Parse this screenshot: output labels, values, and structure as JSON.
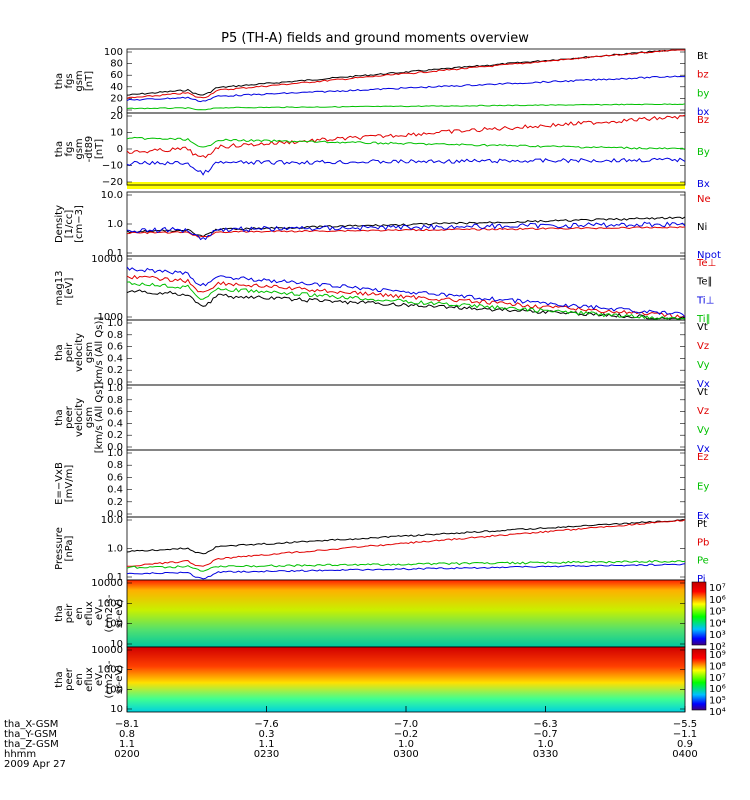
{
  "title": "P5 (TH-A) fields and ground moments overview",
  "panels": [
    {
      "id": "fgs_gsm",
      "ylabel": [
        "tha",
        "fgs",
        "gsm",
        "[nT]"
      ],
      "yticks": [
        "100",
        "80",
        "60",
        "40",
        "20",
        "0"
      ],
      "legend": [
        {
          "t": "Bt",
          "c": "#000000"
        },
        {
          "t": "bz",
          "c": "#e00000"
        },
        {
          "t": "by",
          "c": "#00c000"
        },
        {
          "t": "bx",
          "c": "#0000e0"
        }
      ]
    },
    {
      "id": "fgs_dt89",
      "ylabel": [
        "tha",
        "fgs",
        "gsm",
        "-dt89",
        "[nT]"
      ],
      "yticks": [
        "20",
        "10",
        "0",
        "−10",
        "−20"
      ],
      "legend": [
        {
          "t": "Bz",
          "c": "#e00000"
        },
        {
          "t": "By",
          "c": "#00c000"
        },
        {
          "t": "Bx",
          "c": "#0000e0"
        }
      ]
    },
    {
      "id": "density",
      "ylabel": [
        "Density",
        "[1/cc]",
        "[cm−3]"
      ],
      "yticks": [
        "10.0",
        "1.0",
        "0.1"
      ],
      "legend": [
        {
          "t": "Ne",
          "c": "#e00000"
        },
        {
          "t": "Ni",
          "c": "#000000"
        },
        {
          "t": "Npot",
          "c": "#0000e0"
        }
      ]
    },
    {
      "id": "temp",
      "ylabel": [
        "mag13",
        "[eV]"
      ],
      "yticks": [
        "10000",
        "1000"
      ],
      "legend": [
        {
          "t": "Te⊥",
          "c": "#e00000"
        },
        {
          "t": "Te∥",
          "c": "#000000"
        },
        {
          "t": "Ti⊥",
          "c": "#0000e0"
        },
        {
          "t": "Ti∥",
          "c": "#00c000"
        }
      ]
    },
    {
      "id": "peir_vel",
      "ylabel": [
        "tha",
        "peir",
        "velocity",
        "gsm",
        "[km/s (All Qs)]"
      ],
      "yticks": [
        "1.0",
        "0.8",
        "0.6",
        "0.4",
        "0.2",
        "0.0"
      ],
      "legend": [
        {
          "t": "Vt",
          "c": "#000000"
        },
        {
          "t": "Vz",
          "c": "#e00000"
        },
        {
          "t": "Vy",
          "c": "#00c000"
        },
        {
          "t": "Vx",
          "c": "#0000e0"
        }
      ]
    },
    {
      "id": "peer_vel",
      "ylabel": [
        "tha",
        "peer",
        "velocity",
        "gsm",
        "[km/s (All Qs)]"
      ],
      "yticks": [
        "1.0",
        "0.8",
        "0.6",
        "0.4",
        "0.2",
        "0.0"
      ],
      "legend": [
        {
          "t": "Vt",
          "c": "#000000"
        },
        {
          "t": "Vz",
          "c": "#e00000"
        },
        {
          "t": "Vy",
          "c": "#00c000"
        },
        {
          "t": "Vx",
          "c": "#0000e0"
        }
      ]
    },
    {
      "id": "efield",
      "ylabel": [
        "E=−VxB",
        "[mV/m]"
      ],
      "yticks": [
        "1.0",
        "0.8",
        "0.6",
        "0.4",
        "0.2",
        "0.0"
      ],
      "legend": [
        {
          "t": "Ez",
          "c": "#e00000"
        },
        {
          "t": "Ey",
          "c": "#00c000"
        },
        {
          "t": "Ex",
          "c": "#0000e0"
        }
      ]
    },
    {
      "id": "pressure",
      "ylabel": [
        "Pressure",
        "[nPa]"
      ],
      "yticks": [
        "10.0",
        "1.0",
        "0.1"
      ],
      "legend": [
        {
          "t": "Pt",
          "c": "#000000"
        },
        {
          "t": "Pb",
          "c": "#e00000"
        },
        {
          "t": "Pe",
          "c": "#00c000"
        },
        {
          "t": "Pi",
          "c": "#0000e0"
        }
      ]
    },
    {
      "id": "peir_en",
      "ylabel": [
        "tha",
        "peir",
        "en",
        "eflux",
        "eV",
        "(cm2-s-",
        "sr-eV)"
      ],
      "yticks": [
        "10000",
        "1000",
        "100",
        "10"
      ],
      "cbar": [
        "10⁷",
        "10⁶",
        "10⁵",
        "10⁴",
        "10³",
        "10²"
      ]
    },
    {
      "id": "peer_en",
      "ylabel": [
        "tha",
        "peer",
        "en",
        "eflux",
        "eV",
        "(cm2-s-",
        "sr-eV)"
      ],
      "yticks": [
        "10000",
        "1000",
        "100",
        "10"
      ],
      "cbar": [
        "10⁹",
        "10⁸",
        "10⁷",
        "10⁶",
        "10⁵",
        "10⁴"
      ]
    }
  ],
  "xaxis": {
    "rows": [
      {
        "label": "tha_X-GSM",
        "vals": [
          "−8.1",
          "−7.6",
          "−7.0",
          "−6.3",
          "−5.5"
        ]
      },
      {
        "label": "tha_Y-GSM",
        "vals": [
          "0.8",
          "0.3",
          "−0.2",
          "−0.7",
          "−1.1"
        ]
      },
      {
        "label": "tha_Z-GSM",
        "vals": [
          "1.1",
          "1.1",
          "1.0",
          "1.0",
          "0.9"
        ]
      },
      {
        "label": "hhmm",
        "vals": [
          "0200",
          "0230",
          "0300",
          "0330",
          "0400"
        ]
      }
    ],
    "date": "2009 Apr 27"
  },
  "chart_data": {
    "type": "line",
    "time_range": [
      "0200",
      "0400"
    ],
    "series_summary": [
      {
        "panel": "fgs_gsm",
        "name": "Bt",
        "start": 28,
        "end": 100
      },
      {
        "panel": "fgs_gsm",
        "name": "bz",
        "start": 23,
        "end": 100
      },
      {
        "panel": "fgs_gsm",
        "name": "by",
        "start": 8,
        "end": 14
      },
      {
        "panel": "fgs_gsm",
        "name": "bx",
        "start": 19,
        "end": 48
      },
      {
        "panel": "pressure",
        "name": "Pt",
        "start": 0.8,
        "end": 10.0
      },
      {
        "panel": "pressure",
        "name": "Pb",
        "start": 0.5,
        "end": 10.0
      }
    ]
  }
}
